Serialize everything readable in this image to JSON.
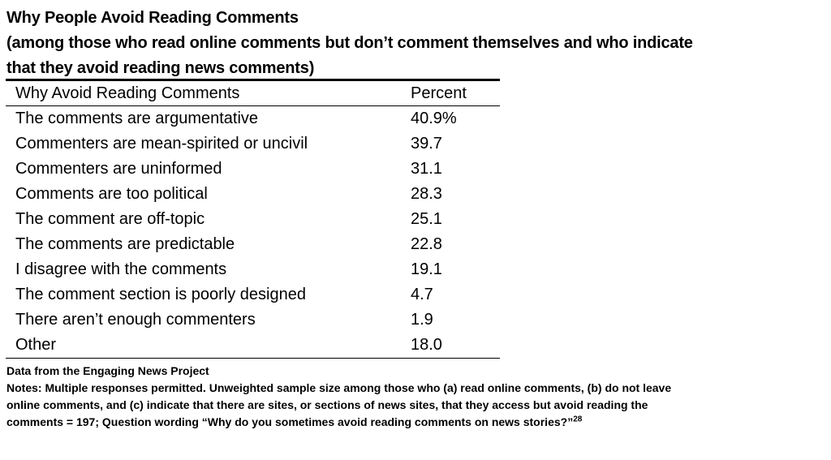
{
  "title": {
    "line1": "Why People Avoid Reading Comments",
    "line2": "(among those who read online comments but don’t comment themselves and who indicate",
    "line3": "that they avoid reading news comments)"
  },
  "table": {
    "headers": [
      "Why Avoid Reading Comments",
      "Percent"
    ],
    "rows": [
      {
        "reason": "The comments are argumentative",
        "percent": "40.9%"
      },
      {
        "reason": "Commenters are mean-spirited or uncivil",
        "percent": "39.7"
      },
      {
        "reason": "Commenters are uninformed",
        "percent": "31.1"
      },
      {
        "reason": "Comments are too political",
        "percent": "28.3"
      },
      {
        "reason": "The comment are off-topic",
        "percent": "25.1"
      },
      {
        "reason": "The comments are predictable",
        "percent": "22.8"
      },
      {
        "reason": "I disagree with the comments",
        "percent": "19.1"
      },
      {
        "reason": "The comment section is poorly designed",
        "percent": "4.7"
      },
      {
        "reason": "There aren’t enough commenters",
        "percent": "1.9"
      },
      {
        "reason": "Other",
        "percent": "18.0"
      }
    ]
  },
  "notes": {
    "source": "Data from the Engaging News Project",
    "line1": "Notes: Multiple responses permitted. Unweighted sample size among those who (a) read online comments, (b) do not leave",
    "line2": "online comments, and (c) indicate that there are sites, or sections of news sites, that they access but avoid reading the",
    "line3": "comments = 197; Question wording “Why do you sometimes avoid reading comments on news stories?”",
    "footnote": "28"
  }
}
